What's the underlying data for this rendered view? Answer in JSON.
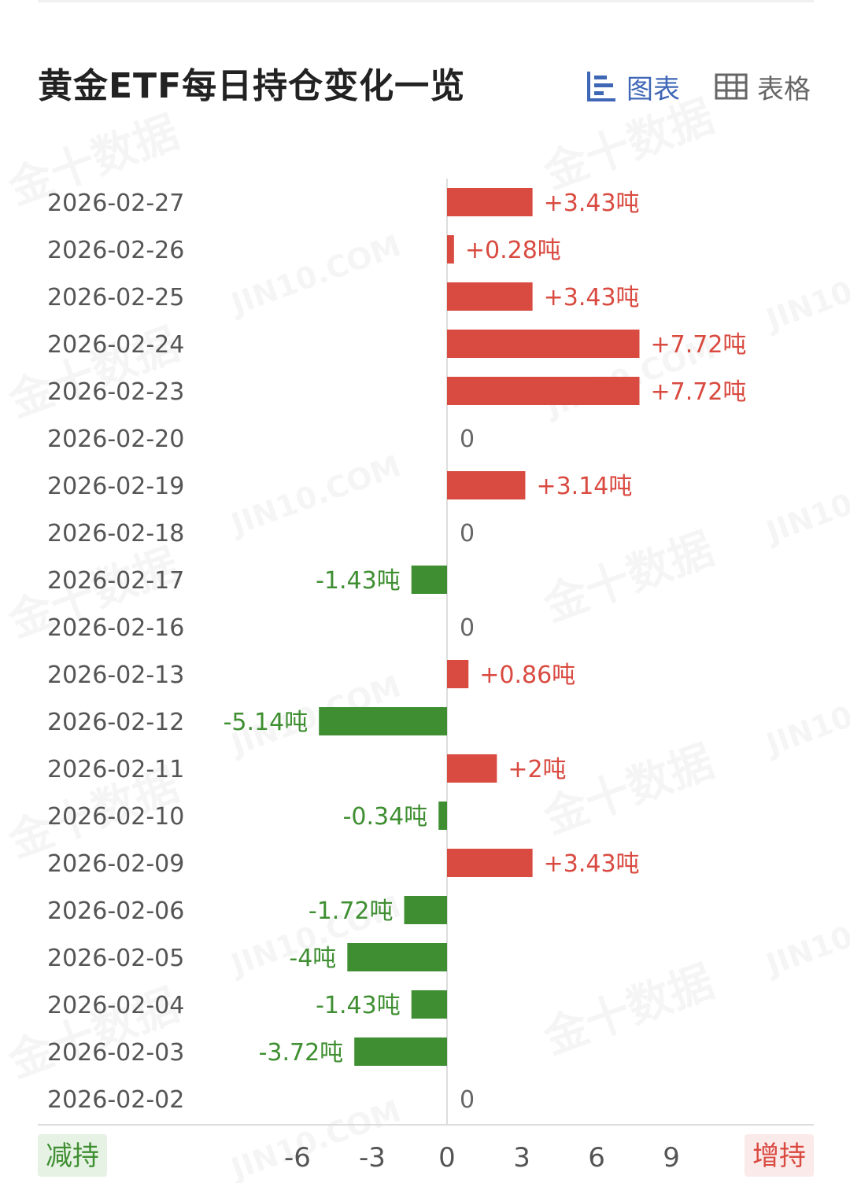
{
  "header": {
    "title": "黄金ETF每日持仓变化一览",
    "tabs": [
      {
        "label": "图表",
        "icon": "bar-chart-icon",
        "active": true
      },
      {
        "label": "表格",
        "icon": "table-grid-icon",
        "active": false
      }
    ]
  },
  "watermarks": [
    "金十数据",
    "JIN10.COM"
  ],
  "colors": {
    "increase": "#d94a40",
    "decrease": "#3f8f32",
    "increase_badge_bg": "#fbeaea",
    "decrease_badge_bg": "#e6f2e3",
    "axis_text": "#555555",
    "tab_active": "#3f67b6",
    "tab_inactive": "#666666"
  },
  "chart_data": {
    "type": "bar",
    "orientation": "horizontal",
    "unit": "吨",
    "categories": [
      "2026-02-27",
      "2026-02-26",
      "2026-02-25",
      "2026-02-24",
      "2026-02-23",
      "2026-02-20",
      "2026-02-19",
      "2026-02-18",
      "2026-02-17",
      "2026-02-16",
      "2026-02-13",
      "2026-02-12",
      "2026-02-11",
      "2026-02-10",
      "2026-02-09",
      "2026-02-06",
      "2026-02-05",
      "2026-02-04",
      "2026-02-03",
      "2026-02-02"
    ],
    "values": [
      3.43,
      0.28,
      3.43,
      7.72,
      7.72,
      0,
      3.14,
      0,
      -1.43,
      0,
      0.86,
      -5.14,
      2,
      -0.34,
      3.43,
      -1.72,
      -4,
      -1.43,
      -3.72,
      0
    ],
    "data_labels": [
      "+3.43吨",
      "+0.28吨",
      "+3.43吨",
      "+7.72吨",
      "+7.72吨",
      "0",
      "+3.14吨",
      "0",
      "-1.43吨",
      "0",
      "+0.86吨",
      "-5.14吨",
      "+2吨",
      "-0.34吨",
      "+3.43吨",
      "-1.72吨",
      "-4吨",
      "-1.43吨",
      "-3.72吨",
      "0"
    ],
    "xlim": [
      -16.33,
      16.33
    ],
    "xticks": [
      -6,
      -3,
      0,
      3,
      6,
      9
    ],
    "xtick_labels": [
      "-6",
      "-3",
      "0",
      "3",
      "6",
      "9"
    ],
    "left_axis_label": "减持",
    "right_axis_label": "增持",
    "grid": false
  }
}
